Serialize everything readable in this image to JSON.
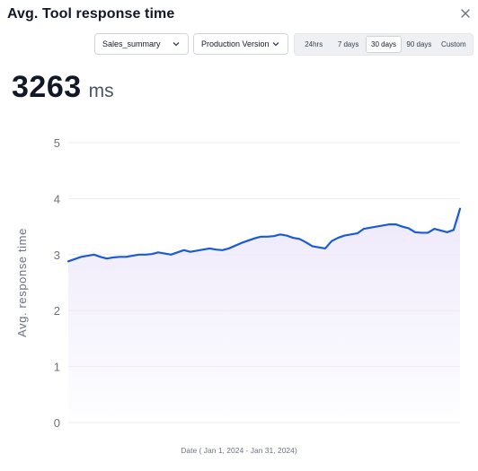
{
  "header": {
    "title": "Avg. Tool response time"
  },
  "filters": {
    "agent_selected": "Sales_summary",
    "version_selected": "Production Version"
  },
  "time_range": {
    "options": [
      "24hrs",
      "7 days",
      "30 days",
      "90 days",
      "Custom"
    ],
    "selected": "30 days"
  },
  "metric": {
    "value": "3263",
    "unit": "ms"
  },
  "colors": {
    "line": "#1a5ad7",
    "fill": "#ede8fb",
    "grid": "#e5e7eb",
    "tick": "#6b7280"
  },
  "chart_data": {
    "type": "area",
    "xlabel": "Date ( Jan 1, 2024 - Jan 31, 2024)",
    "ylabel": "Avg. response time",
    "ylim": [
      0,
      5
    ],
    "yticks": [
      0,
      1,
      2,
      3,
      4,
      5
    ],
    "grid": true,
    "x": [
      0,
      1,
      2,
      3,
      4,
      5,
      6,
      7,
      8,
      9,
      10,
      11,
      12,
      13,
      14,
      15,
      16,
      17,
      18,
      19,
      20,
      21,
      22,
      23,
      24,
      25,
      26,
      27,
      28,
      29,
      30,
      31,
      32,
      33,
      34,
      35,
      36,
      37,
      38,
      39,
      40,
      41,
      42,
      43,
      44,
      45,
      46,
      47,
      48,
      49,
      50,
      51,
      52,
      53,
      54,
      55,
      56,
      57,
      58,
      59,
      60,
      61
    ],
    "series": [
      {
        "values": [
          2.88,
          2.92,
          2.96,
          2.98,
          3.0,
          2.96,
          2.93,
          2.95,
          2.96,
          2.96,
          2.98,
          3.0,
          3.0,
          3.01,
          3.04,
          3.02,
          3.0,
          3.04,
          3.08,
          3.05,
          3.07,
          3.09,
          3.11,
          3.09,
          3.08,
          3.11,
          3.16,
          3.21,
          3.25,
          3.29,
          3.32,
          3.32,
          3.33,
          3.36,
          3.34,
          3.3,
          3.28,
          3.22,
          3.15,
          3.13,
          3.11,
          3.24,
          3.3,
          3.34,
          3.36,
          3.38,
          3.46,
          3.48,
          3.5,
          3.52,
          3.54,
          3.54,
          3.5,
          3.47,
          3.4,
          3.39,
          3.39,
          3.46,
          3.43,
          3.4,
          3.44,
          3.82
        ]
      }
    ]
  }
}
